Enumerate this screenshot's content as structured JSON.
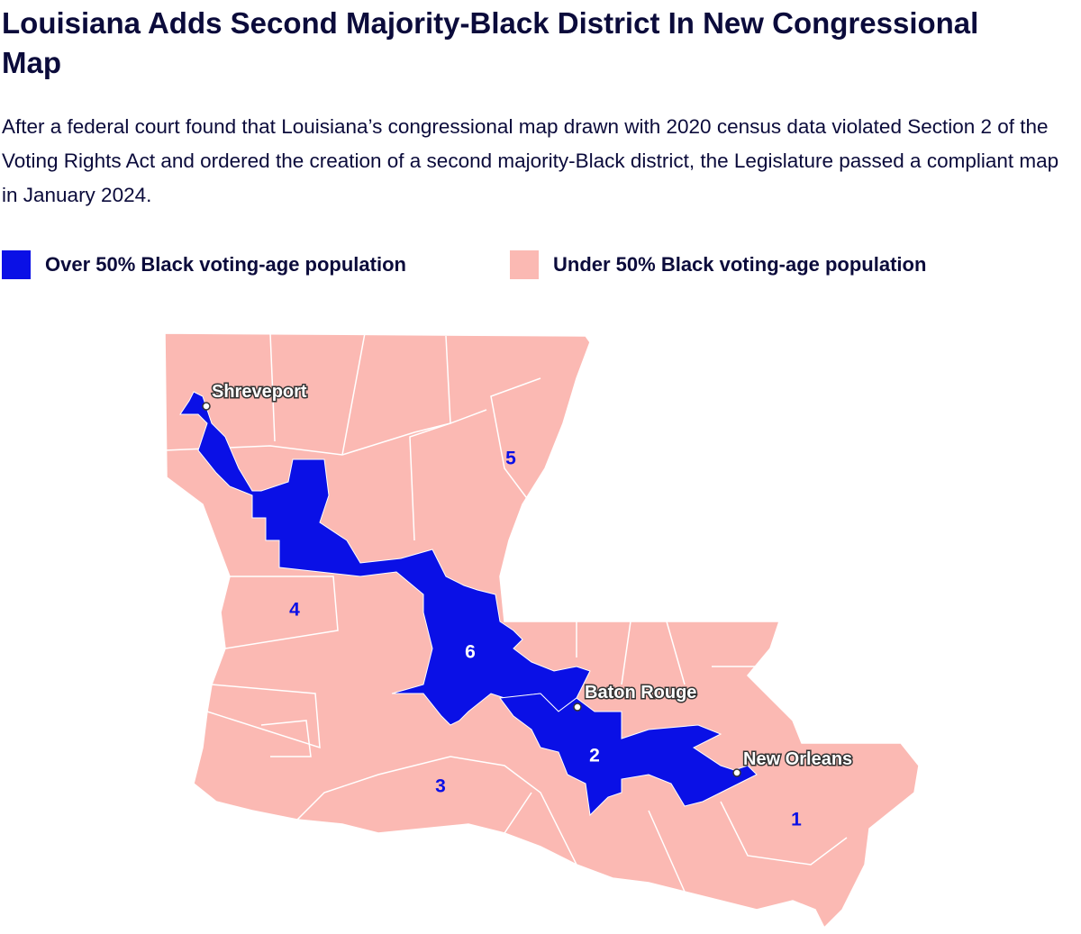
{
  "header": {
    "title": "Louisiana Adds Second Majority-Black District In New Congressional Map",
    "subtitle": "After a federal court found that Louisiana’s congressional map drawn with 2020 census data violated Section 2 of the Voting Rights Act and ordered the creation of a second majority-Black district, the Legislature passed a compliant map in January 2024."
  },
  "legend": [
    {
      "label": "Over 50% Black voting-age population",
      "color": "#0a10e6"
    },
    {
      "label": "Under 50% Black voting-age population",
      "color": "#fbb9b3"
    }
  ],
  "districts": [
    "5",
    "4",
    "6",
    "3",
    "2",
    "1"
  ],
  "cities": [
    "Shreveport",
    "Baton Rouge",
    "New Orleans"
  ]
}
